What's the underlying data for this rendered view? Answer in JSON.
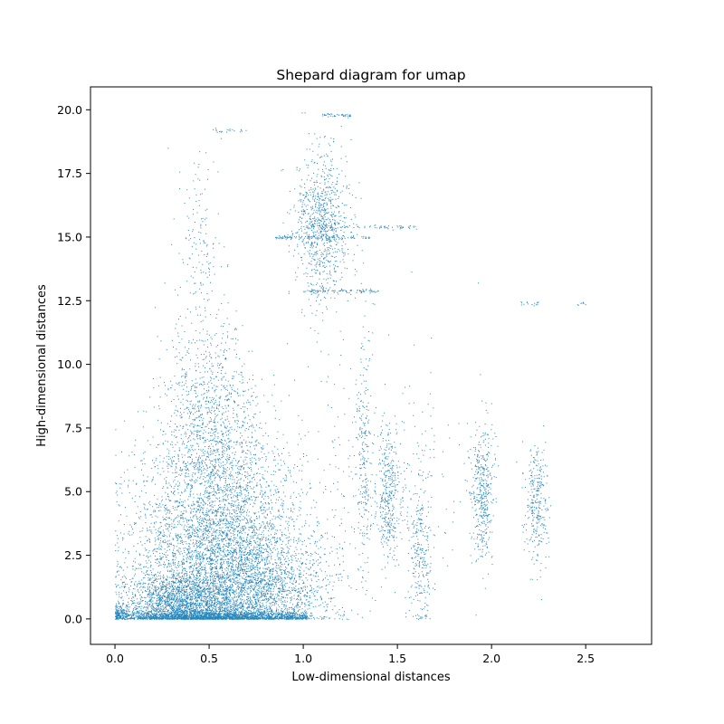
{
  "chart_data": {
    "type": "scatter",
    "title": "Shepard diagram for umap",
    "xlabel": "Low-dimensional distances",
    "ylabel": "High-dimensional distances",
    "xlim": [
      -0.13,
      2.85
    ],
    "ylim": [
      -1.0,
      20.9
    ],
    "xticks": [
      "0.0",
      "0.5",
      "1.0",
      "1.5",
      "2.0",
      "2.5"
    ],
    "yticks": [
      "0.0",
      "2.5",
      "5.0",
      "7.5",
      "10.0",
      "12.5",
      "15.0",
      "17.5",
      "20.0"
    ],
    "grid": false,
    "marker_color": "#0072b2",
    "clusters": [
      {
        "x_mean": 0.55,
        "x_sd": 0.22,
        "y_mean": 2.6,
        "y_sd": 2.4,
        "count": 5200
      },
      {
        "x_mean": 0.35,
        "x_sd": 0.15,
        "y_mean": 0.6,
        "y_sd": 0.6,
        "count": 1800
      },
      {
        "x_mean": 0.8,
        "x_sd": 0.2,
        "y_mean": 1.2,
        "y_sd": 1.0,
        "count": 1400
      },
      {
        "x_mean": 0.5,
        "x_sd": 0.12,
        "y_mean": 8.0,
        "y_sd": 1.8,
        "count": 900
      },
      {
        "x_mean": 0.45,
        "x_sd": 0.06,
        "y_mean": 14.5,
        "y_sd": 2.0,
        "count": 160
      },
      {
        "x_mean": 1.1,
        "x_sd": 0.07,
        "y_mean": 15.5,
        "y_sd": 1.5,
        "count": 900
      },
      {
        "x_mean": 1.32,
        "x_sd": 0.02,
        "y_mean": 6.5,
        "y_sd": 2.5,
        "count": 220
      },
      {
        "x_mean": 1.45,
        "x_sd": 0.03,
        "y_mean": 4.8,
        "y_sd": 1.2,
        "count": 350
      },
      {
        "x_mean": 1.62,
        "x_sd": 0.03,
        "y_mean": 2.5,
        "y_sd": 1.5,
        "count": 260
      },
      {
        "x_mean": 1.95,
        "x_sd": 0.03,
        "y_mean": 5.0,
        "y_sd": 1.3,
        "count": 420
      },
      {
        "x_mean": 2.24,
        "x_sd": 0.03,
        "y_mean": 4.5,
        "y_sd": 1.2,
        "count": 300
      },
      {
        "x_mean": 1.4,
        "x_sd": 0.25,
        "y_mean": 5.5,
        "y_sd": 2.5,
        "count": 300
      }
    ],
    "streaks": [
      {
        "x_start": 0.85,
        "x_end": 1.35,
        "y": 15.0,
        "count": 120
      },
      {
        "x_start": 1.0,
        "x_end": 1.6,
        "y": 15.4,
        "count": 80
      },
      {
        "x_start": 1.0,
        "x_end": 1.4,
        "y": 12.9,
        "count": 90
      },
      {
        "x_start": 1.1,
        "x_end": 1.25,
        "y": 19.8,
        "count": 40
      },
      {
        "x_start": 0.5,
        "x_end": 0.7,
        "y": 19.2,
        "count": 20
      },
      {
        "x_start": 2.15,
        "x_end": 2.25,
        "y": 12.4,
        "count": 15
      },
      {
        "x_start": 2.45,
        "x_end": 2.5,
        "y": 12.4,
        "count": 8
      }
    ]
  }
}
